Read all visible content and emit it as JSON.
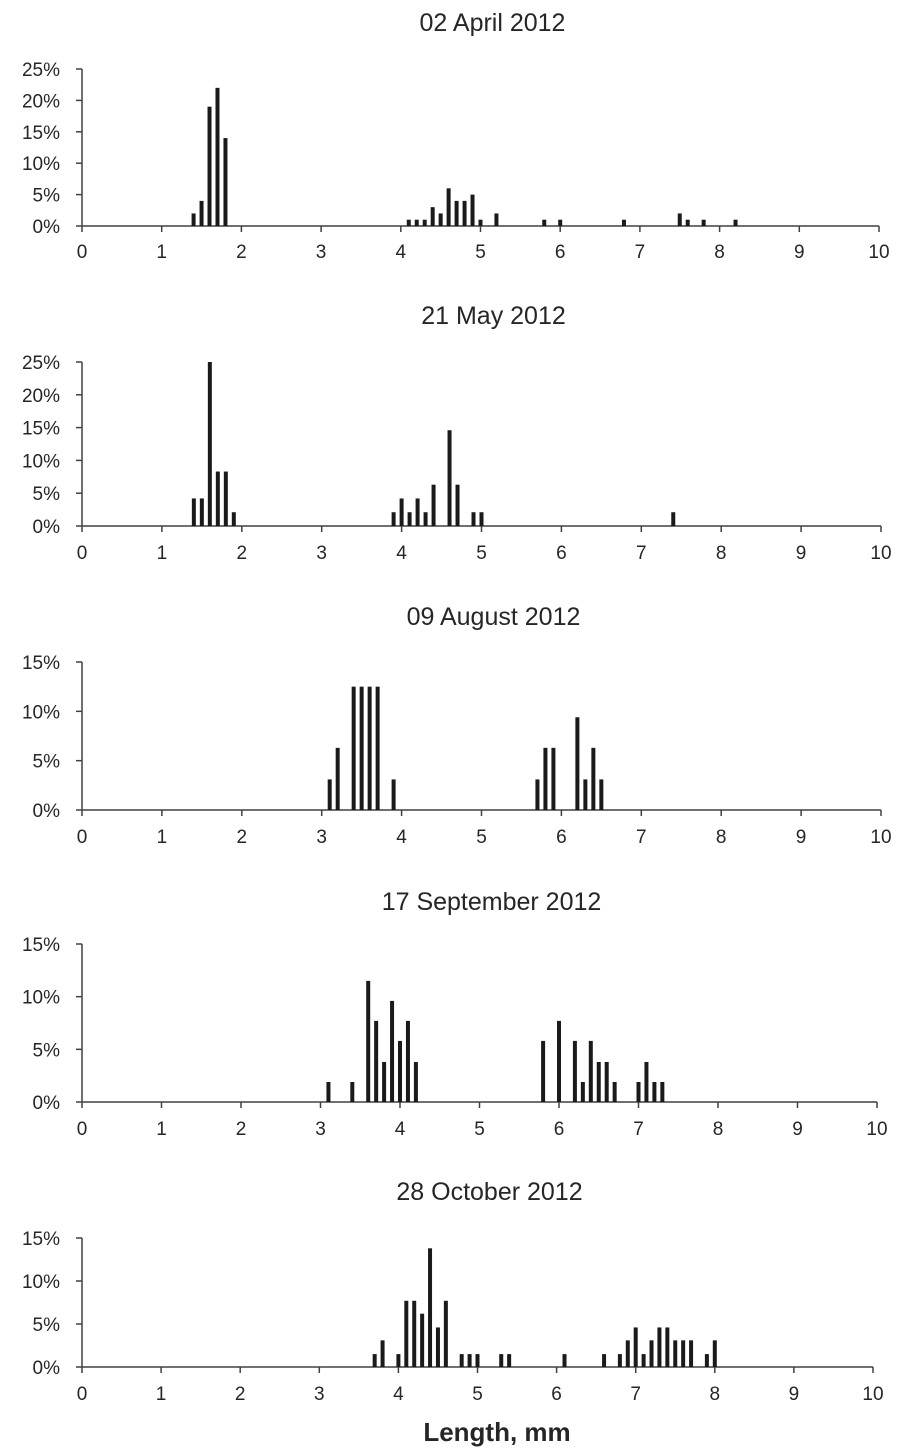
{
  "figure": {
    "xlabel": "Length, mm"
  },
  "chart_data": [
    {
      "type": "bar",
      "title": "02 April 2012",
      "xlabel": "",
      "ylabel": "",
      "xlim": [
        0,
        10
      ],
      "ylim": [
        0,
        25
      ],
      "x_ticks": [
        0,
        1,
        2,
        3,
        4,
        5,
        6,
        7,
        8,
        9,
        10
      ],
      "y_ticks": [
        0,
        5,
        10,
        15,
        20,
        25
      ],
      "y_unit": "%",
      "grid": false,
      "points": [
        {
          "x": 1.4,
          "y": 2
        },
        {
          "x": 1.5,
          "y": 4
        },
        {
          "x": 1.6,
          "y": 19
        },
        {
          "x": 1.7,
          "y": 22
        },
        {
          "x": 1.8,
          "y": 14
        },
        {
          "x": 4.1,
          "y": 1
        },
        {
          "x": 4.2,
          "y": 1
        },
        {
          "x": 4.3,
          "y": 1
        },
        {
          "x": 4.4,
          "y": 3
        },
        {
          "x": 4.5,
          "y": 2
        },
        {
          "x": 4.6,
          "y": 6
        },
        {
          "x": 4.7,
          "y": 4
        },
        {
          "x": 4.8,
          "y": 4
        },
        {
          "x": 4.9,
          "y": 5
        },
        {
          "x": 5.0,
          "y": 1
        },
        {
          "x": 5.2,
          "y": 2
        },
        {
          "x": 5.8,
          "y": 1
        },
        {
          "x": 6.0,
          "y": 1
        },
        {
          "x": 6.8,
          "y": 1
        },
        {
          "x": 7.5,
          "y": 2
        },
        {
          "x": 7.6,
          "y": 1
        },
        {
          "x": 7.8,
          "y": 1
        },
        {
          "x": 8.2,
          "y": 1
        }
      ]
    },
    {
      "type": "bar",
      "title": "21 May 2012",
      "xlabel": "",
      "ylabel": "",
      "xlim": [
        0,
        10
      ],
      "ylim": [
        0,
        25
      ],
      "x_ticks": [
        0,
        1,
        2,
        3,
        4,
        5,
        6,
        7,
        8,
        9,
        10
      ],
      "y_ticks": [
        0,
        5,
        10,
        15,
        20,
        25
      ],
      "y_unit": "%",
      "grid": false,
      "points": [
        {
          "x": 1.4,
          "y": 4.2
        },
        {
          "x": 1.5,
          "y": 4.2
        },
        {
          "x": 1.6,
          "y": 25
        },
        {
          "x": 1.7,
          "y": 8.3
        },
        {
          "x": 1.8,
          "y": 8.3
        },
        {
          "x": 1.9,
          "y": 2.1
        },
        {
          "x": 3.9,
          "y": 2.1
        },
        {
          "x": 4.0,
          "y": 4.2
        },
        {
          "x": 4.1,
          "y": 2.1
        },
        {
          "x": 4.2,
          "y": 4.2
        },
        {
          "x": 4.3,
          "y": 2.1
        },
        {
          "x": 4.4,
          "y": 6.3
        },
        {
          "x": 4.6,
          "y": 14.6
        },
        {
          "x": 4.7,
          "y": 6.3
        },
        {
          "x": 4.9,
          "y": 2.1
        },
        {
          "x": 5.0,
          "y": 2.1
        },
        {
          "x": 7.4,
          "y": 2.1
        }
      ]
    },
    {
      "type": "bar",
      "title": "09 August 2012",
      "xlabel": "",
      "ylabel": "",
      "xlim": [
        0,
        10
      ],
      "ylim": [
        0,
        15
      ],
      "x_ticks": [
        0,
        1,
        2,
        3,
        4,
        5,
        6,
        7,
        8,
        9,
        10
      ],
      "y_ticks": [
        0,
        5,
        10,
        15
      ],
      "y_unit": "%",
      "grid": false,
      "points": [
        {
          "x": 3.1,
          "y": 3.1
        },
        {
          "x": 3.2,
          "y": 6.3
        },
        {
          "x": 3.4,
          "y": 12.5
        },
        {
          "x": 3.5,
          "y": 12.5
        },
        {
          "x": 3.6,
          "y": 12.5
        },
        {
          "x": 3.7,
          "y": 12.5
        },
        {
          "x": 3.9,
          "y": 3.1
        },
        {
          "x": 5.7,
          "y": 3.1
        },
        {
          "x": 5.8,
          "y": 6.3
        },
        {
          "x": 5.9,
          "y": 6.3
        },
        {
          "x": 6.2,
          "y": 9.4
        },
        {
          "x": 6.3,
          "y": 3.1
        },
        {
          "x": 6.4,
          "y": 6.3
        },
        {
          "x": 6.5,
          "y": 3.1
        }
      ]
    },
    {
      "type": "bar",
      "title": "17 September 2012",
      "xlabel": "",
      "ylabel": "",
      "xlim": [
        0,
        10
      ],
      "ylim": [
        0,
        15
      ],
      "x_ticks": [
        0,
        1,
        2,
        3,
        4,
        5,
        6,
        7,
        8,
        9,
        10
      ],
      "y_ticks": [
        0,
        5,
        10,
        15
      ],
      "y_unit": "%",
      "grid": false,
      "points": [
        {
          "x": 3.1,
          "y": 1.9
        },
        {
          "x": 3.4,
          "y": 1.9
        },
        {
          "x": 3.6,
          "y": 11.5
        },
        {
          "x": 3.7,
          "y": 7.7
        },
        {
          "x": 3.8,
          "y": 3.8
        },
        {
          "x": 3.9,
          "y": 9.6
        },
        {
          "x": 4.0,
          "y": 5.8
        },
        {
          "x": 4.1,
          "y": 7.7
        },
        {
          "x": 4.2,
          "y": 3.8
        },
        {
          "x": 5.8,
          "y": 5.8
        },
        {
          "x": 6.0,
          "y": 7.7
        },
        {
          "x": 6.2,
          "y": 5.8
        },
        {
          "x": 6.3,
          "y": 1.9
        },
        {
          "x": 6.4,
          "y": 5.8
        },
        {
          "x": 6.5,
          "y": 3.8
        },
        {
          "x": 6.6,
          "y": 3.8
        },
        {
          "x": 6.7,
          "y": 1.9
        },
        {
          "x": 7.0,
          "y": 1.9
        },
        {
          "x": 7.1,
          "y": 3.8
        },
        {
          "x": 7.2,
          "y": 1.9
        },
        {
          "x": 7.3,
          "y": 1.9
        }
      ]
    },
    {
      "type": "bar",
      "title": "28 October 2012",
      "xlabel": "Length, mm",
      "ylabel": "",
      "xlim": [
        0,
        10
      ],
      "ylim": [
        0,
        15
      ],
      "x_ticks": [
        0,
        1,
        2,
        3,
        4,
        5,
        6,
        7,
        8,
        9,
        10
      ],
      "y_ticks": [
        0,
        5,
        10,
        15
      ],
      "y_unit": "%",
      "grid": false,
      "points": [
        {
          "x": 3.7,
          "y": 1.5
        },
        {
          "x": 3.8,
          "y": 3.1
        },
        {
          "x": 4.0,
          "y": 1.5
        },
        {
          "x": 4.1,
          "y": 7.7
        },
        {
          "x": 4.2,
          "y": 7.7
        },
        {
          "x": 4.3,
          "y": 6.2
        },
        {
          "x": 4.4,
          "y": 13.8
        },
        {
          "x": 4.5,
          "y": 4.6
        },
        {
          "x": 4.6,
          "y": 7.7
        },
        {
          "x": 4.8,
          "y": 1.5
        },
        {
          "x": 4.9,
          "y": 1.5
        },
        {
          "x": 5.0,
          "y": 1.5
        },
        {
          "x": 5.3,
          "y": 1.5
        },
        {
          "x": 5.4,
          "y": 1.5
        },
        {
          "x": 6.1,
          "y": 1.5
        },
        {
          "x": 6.6,
          "y": 1.5
        },
        {
          "x": 6.8,
          "y": 1.5
        },
        {
          "x": 6.9,
          "y": 3.1
        },
        {
          "x": 7.0,
          "y": 4.6
        },
        {
          "x": 7.1,
          "y": 1.5
        },
        {
          "x": 7.2,
          "y": 3.1
        },
        {
          "x": 7.3,
          "y": 4.6
        },
        {
          "x": 7.4,
          "y": 4.6
        },
        {
          "x": 7.5,
          "y": 3.1
        },
        {
          "x": 7.6,
          "y": 3.1
        },
        {
          "x": 7.7,
          "y": 3.1
        },
        {
          "x": 7.9,
          "y": 1.5
        },
        {
          "x": 8.0,
          "y": 3.1
        }
      ]
    }
  ]
}
